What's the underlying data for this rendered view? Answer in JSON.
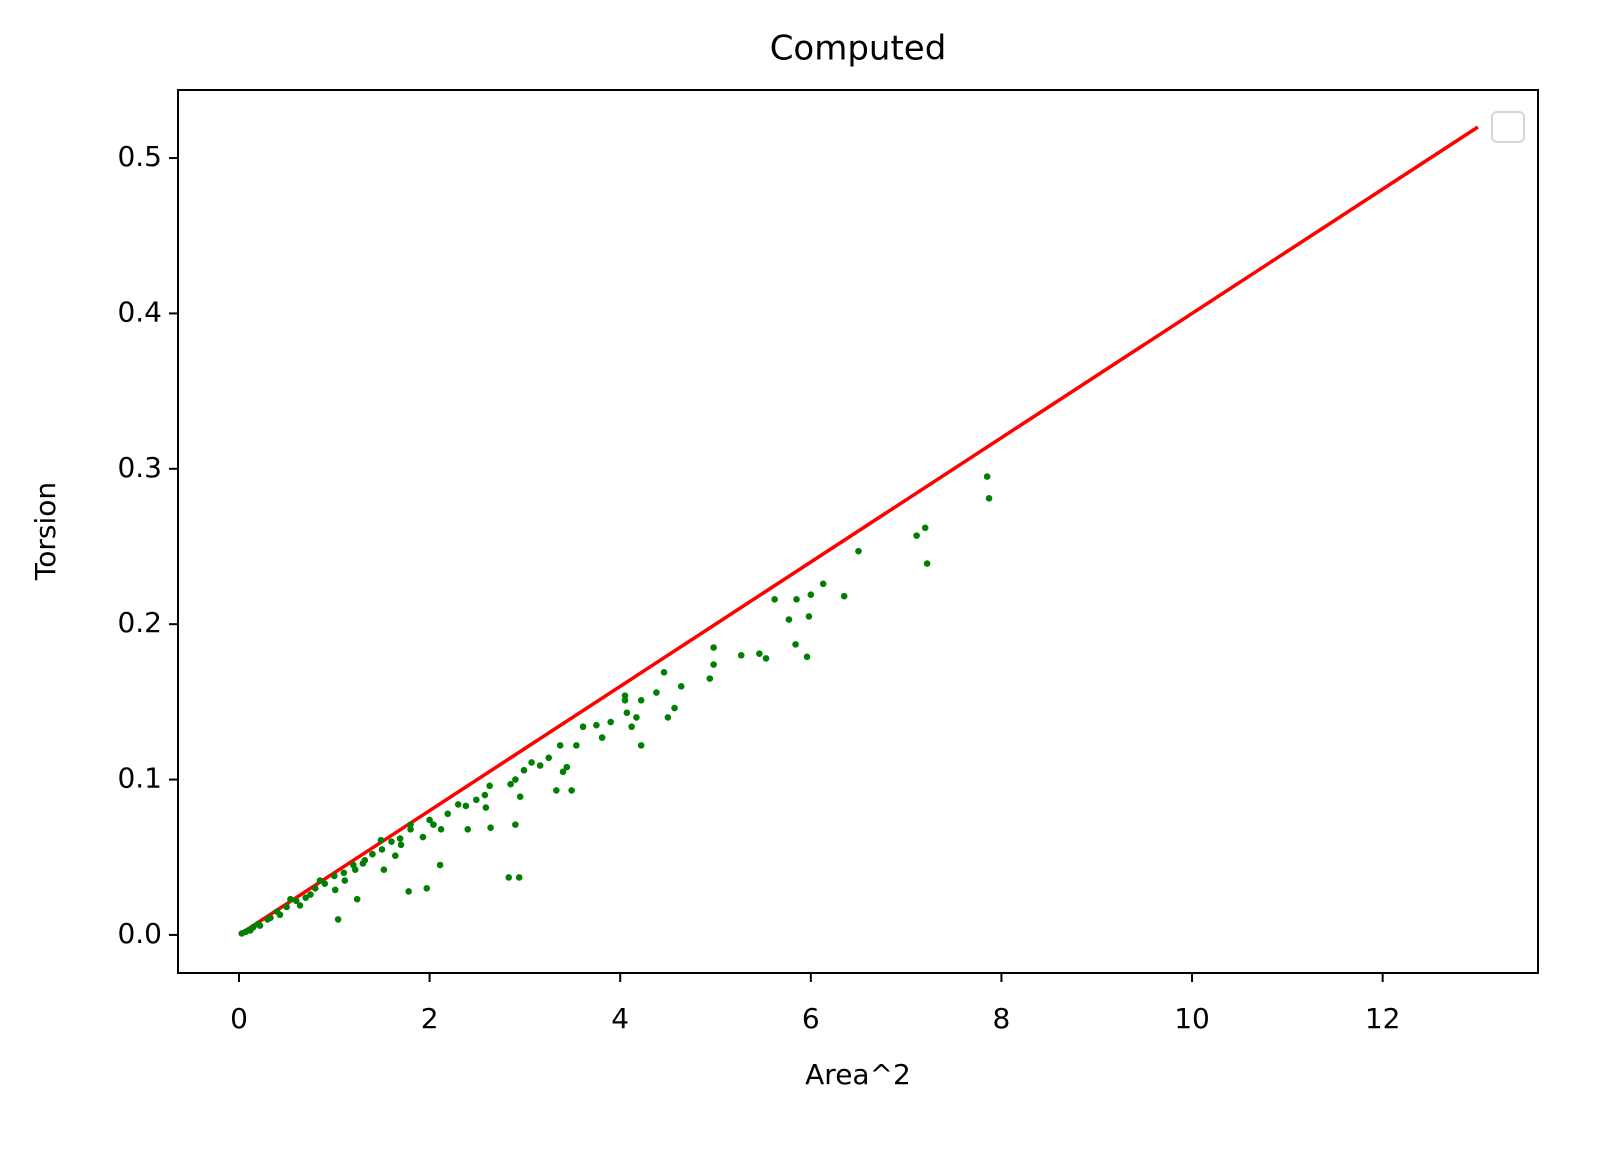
{
  "chart_data": {
    "type": "scatter",
    "title": "Computed",
    "x_label": "Area^2",
    "y_label": "Torsion",
    "xlim": [
      -0.64,
      13.63
    ],
    "ylim": [
      -0.0245,
      0.5438
    ],
    "xticks": [
      0,
      2,
      4,
      6,
      8,
      10,
      12
    ],
    "yticks": [
      {
        "value": 0,
        "label": "0.0"
      },
      0.1,
      0.2,
      0.3,
      0.4,
      0.5
    ],
    "grid": false,
    "legend": "upper right",
    "series": [
      {
        "type": "line",
        "color": "#ff0000",
        "x": [
          0,
          13
        ],
        "values": [
          0,
          0.52
        ]
      },
      {
        "type": "scatter",
        "color": "#008000",
        "x": [
          7.85,
          7.87,
          7.2,
          7.11,
          7.22,
          6.5,
          6.13,
          6.0,
          6.35,
          5.62,
          5.85,
          5.77,
          5.98,
          5.84,
          5.96,
          5.27,
          5.46,
          5.53,
          4.98,
          4.98,
          4.94,
          4.64,
          4.46,
          4.38,
          4.57,
          4.05,
          4.05,
          4.22,
          4.07,
          4.12,
          4.17,
          4.22,
          4.5,
          3.9,
          3.75,
          3.81,
          3.61,
          3.54,
          3.37,
          3.44,
          3.4,
          3.25,
          3.16,
          3.07,
          2.99,
          2.9,
          3.33,
          3.49,
          2.95,
          2.85,
          2.63,
          2.58,
          2.59,
          2.49,
          2.38,
          2.3,
          2.19,
          2.12,
          2.4,
          2.64,
          2.9,
          2.83,
          2.94,
          2.04,
          1.97,
          1.78,
          2.11,
          1.93,
          1.8,
          1.69,
          1.64,
          1.52,
          1.49,
          1.32,
          1.22,
          1.24,
          1.04,
          1.11,
          1.01,
          0.85,
          0.75,
          0.64,
          0.54,
          0.43,
          0.33,
          0.22,
          0.12,
          0.03,
          0.07,
          1.0,
          1.2,
          1.4,
          1.6,
          0.8,
          0.6,
          0.4,
          0.2,
          1.8,
          0.9,
          0.5,
          0.3,
          0.7,
          1.1,
          1.3,
          1.5,
          1.7,
          2.0,
          0.15,
          0.1
        ],
        "values": [
          0.295,
          0.281,
          0.262,
          0.257,
          0.239,
          0.247,
          0.226,
          0.219,
          0.218,
          0.216,
          0.216,
          0.203,
          0.205,
          0.187,
          0.179,
          0.18,
          0.181,
          0.178,
          0.185,
          0.174,
          0.165,
          0.16,
          0.169,
          0.156,
          0.146,
          0.154,
          0.151,
          0.151,
          0.143,
          0.134,
          0.14,
          0.122,
          0.14,
          0.137,
          0.135,
          0.127,
          0.134,
          0.122,
          0.122,
          0.108,
          0.105,
          0.114,
          0.109,
          0.111,
          0.106,
          0.1,
          0.093,
          0.093,
          0.089,
          0.097,
          0.096,
          0.09,
          0.082,
          0.087,
          0.083,
          0.084,
          0.078,
          0.068,
          0.068,
          0.069,
          0.071,
          0.037,
          0.037,
          0.071,
          0.03,
          0.028,
          0.045,
          0.063,
          0.071,
          0.062,
          0.051,
          0.042,
          0.061,
          0.048,
          0.042,
          0.023,
          0.01,
          0.035,
          0.029,
          0.035,
          0.026,
          0.019,
          0.023,
          0.013,
          0.011,
          0.006,
          0.003,
          0.001,
          0.002,
          0.038,
          0.045,
          0.052,
          0.06,
          0.03,
          0.022,
          0.015,
          0.007,
          0.068,
          0.033,
          0.018,
          0.01,
          0.024,
          0.04,
          0.046,
          0.055,
          0.058,
          0.074,
          0.005,
          0.003
        ]
      }
    ]
  }
}
